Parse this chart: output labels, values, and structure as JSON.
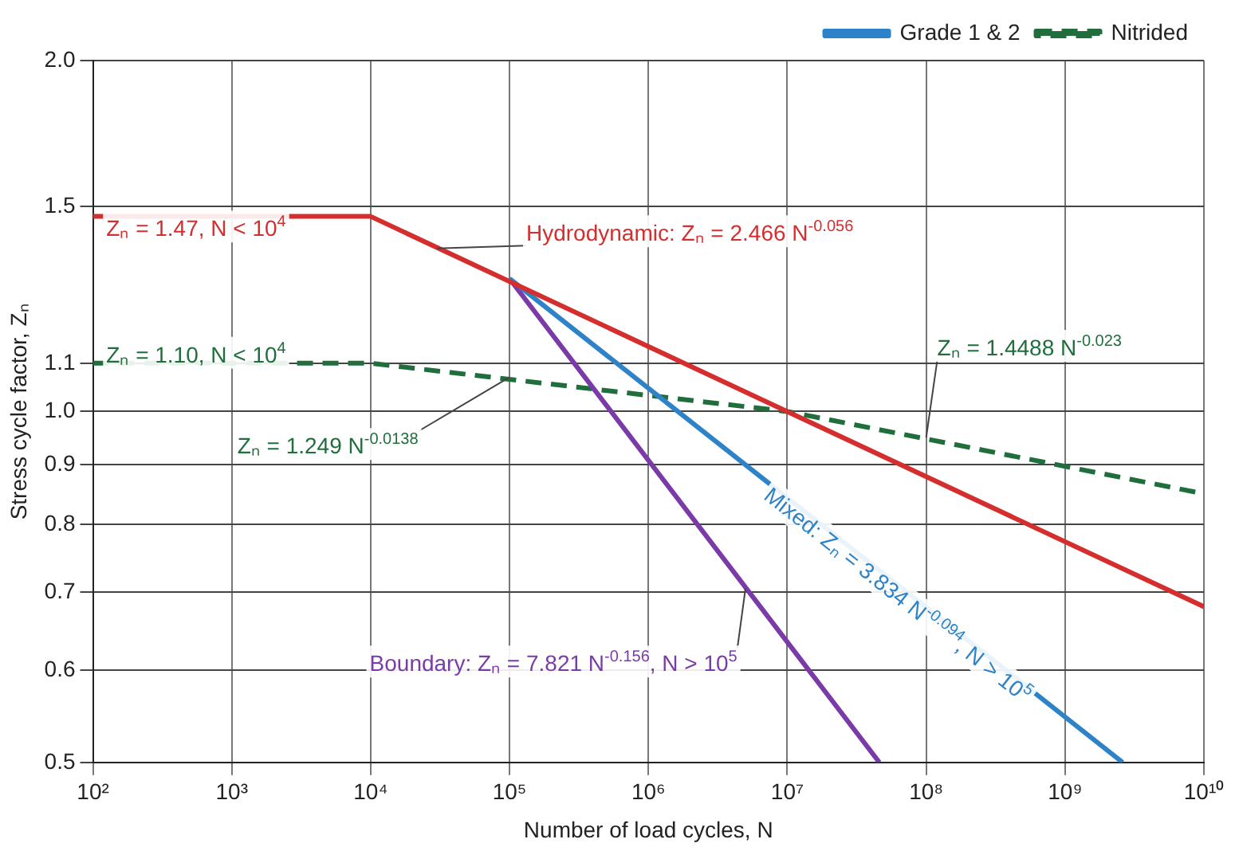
{
  "chart_data": {
    "type": "line",
    "xlabel": "Number of load cycles, N",
    "ylabel": "Stress cycle factor, Zₙ",
    "log": "xy",
    "grid": true,
    "legend": "top right",
    "marker": "none",
    "xlim": [
      100,
      10000000000
    ],
    "ylim": [
      0.5,
      2.0
    ],
    "xticks": [
      {
        "value": 100,
        "label": "10²"
      },
      {
        "value": 1000,
        "label": "10³"
      },
      {
        "value": 10000,
        "label": "10⁴"
      },
      {
        "value": 100000,
        "label": "10⁵"
      },
      {
        "value": 1000000,
        "label": "10⁶"
      },
      {
        "value": 10000000,
        "label": "10⁷"
      },
      {
        "value": 100000000,
        "label": "10⁸"
      },
      {
        "value": 1000000000,
        "label": "10⁹"
      },
      {
        "value": 10000000000,
        "label": "10¹⁰"
      }
    ],
    "yticks": [
      0.5,
      0.6,
      0.7,
      0.8,
      0.9,
      {
        "value": 1,
        "label": "1.0"
      },
      1.1,
      1.5,
      {
        "value": 2,
        "label": "2.0"
      }
    ],
    "series": [
      {
        "color": "#d42e2e",
        "x": [
          100,
          10000,
          10000000000
        ],
        "values": [
          1.47,
          1.47,
          0.68
        ]
      },
      {
        "name": "Grade 1 & 2",
        "color": "#2e82c8",
        "x": [
          100000,
          2600000000
        ],
        "values": [
          1.3,
          0.5
        ]
      },
      {
        "color": "#7a3aa8",
        "x": [
          100000,
          46000000
        ],
        "values": [
          1.3,
          0.5
        ]
      },
      {
        "name": "Nitrided",
        "color": "#1f6e3c",
        "line_style": "dashed",
        "x": [
          100,
          10000,
          10000000,
          10000000000
        ],
        "values": [
          1.1,
          1.1,
          1.0,
          0.85
        ]
      }
    ],
    "annotations": [
      "Zₙ = 1.47, N < 10$^{4}$",
      {
        "text": "Hydrodynamic: Zₙ = 2.466 N$^{-0.056}$",
        "x": 30000,
        "y": 1.38
      },
      "Zₙ = 1.10, N < 10$^{4}$",
      {
        "text": "Zₙ = 1.249 N$^{-0.0138}$",
        "x": 100000,
        "y": 1.07
      },
      {
        "text": "Zₙ = 1.4488 N$^{-0.023}$",
        "x": 100000000,
        "y": 0.95
      },
      "Mixed: Zₙ = 3.834 N$^{-0.094}$, N > 10$^{5}$",
      {
        "text": "Boundary: Zₙ = 7.821 N$^{-0.156}$, N > 10$^{5}$",
        "x": 5000000,
        "y": 0.705
      }
    ]
  }
}
